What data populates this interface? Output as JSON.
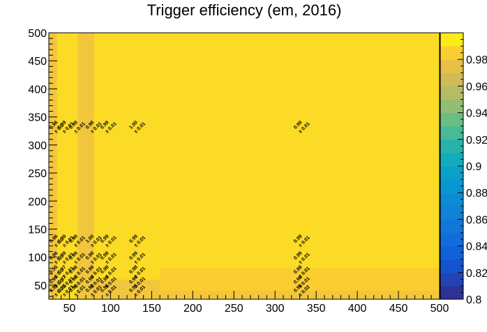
{
  "chart_data": {
    "type": "heatmap",
    "title": "Trigger efficiency (em, 2016)",
    "xlabel": "",
    "ylabel": "",
    "xlim": [
      25,
      500
    ],
    "ylim": [
      25,
      500
    ],
    "x_ticks": [
      50,
      100,
      150,
      200,
      250,
      300,
      350,
      400,
      450,
      500
    ],
    "y_ticks": [
      50,
      100,
      150,
      200,
      250,
      300,
      350,
      400,
      450,
      500
    ],
    "colorbar": {
      "min": 0.8,
      "max": 1.0,
      "ticks": [
        "0.8",
        "0.82",
        "0.84",
        "0.86",
        "0.88",
        "0.9",
        "0.92",
        "0.94",
        "0.96",
        "0.98"
      ]
    },
    "background_value": 0.99,
    "cells": [
      {
        "x": [
          25,
          35
        ],
        "y": [
          25,
          500
        ],
        "value": 0.98
      },
      {
        "x": [
          35,
          60
        ],
        "y": [
          25,
          500
        ],
        "value": 0.99
      },
      {
        "x": [
          60,
          80
        ],
        "y": [
          150,
          500
        ],
        "value": 0.98
      },
      {
        "x": [
          60,
          80
        ],
        "y": [
          25,
          150
        ],
        "value": 0.98
      },
      {
        "x": [
          80,
          500
        ],
        "y": [
          25,
          40
        ],
        "value": 0.98
      },
      {
        "x": [
          80,
          160
        ],
        "y": [
          40,
          60
        ],
        "value": 0.98
      },
      {
        "x": [
          160,
          500
        ],
        "y": [
          40,
          80
        ],
        "value": 0.985
      }
    ],
    "annotations": [
      {
        "x": 28,
        "y": 328,
        "value": "0.96",
        "err": "± 0.0"
      },
      {
        "x": 38,
        "y": 328,
        "value": "0.99",
        "err": "± 0.01"
      },
      {
        "x": 52,
        "y": 328,
        "value": "0.99",
        "err": "± 0.01"
      },
      {
        "x": 72,
        "y": 328,
        "value": "0.98",
        "err": "± 0.01"
      },
      {
        "x": 90,
        "y": 328,
        "value": "0.99",
        "err": "± 0.01"
      },
      {
        "x": 125,
        "y": 328,
        "value": "1.00",
        "err": "± 0.01"
      },
      {
        "x": 325,
        "y": 328,
        "value": "0.99",
        "err": "± 0.01"
      },
      {
        "x": 28,
        "y": 125,
        "value": "0.96",
        "err": "± 0.0"
      },
      {
        "x": 38,
        "y": 125,
        "value": "0.99",
        "err": "± 0.01"
      },
      {
        "x": 52,
        "y": 125,
        "value": "0.99",
        "err": "± 0.01"
      },
      {
        "x": 72,
        "y": 125,
        "value": "1.00",
        "err": "± 0.01"
      },
      {
        "x": 90,
        "y": 125,
        "value": "0.99",
        "err": "± 0.01"
      },
      {
        "x": 125,
        "y": 125,
        "value": "0.99",
        "err": "± 0.01"
      },
      {
        "x": 325,
        "y": 125,
        "value": "0.99",
        "err": "± 0.01"
      },
      {
        "x": 28,
        "y": 95,
        "value": "0.96",
        "err": "± 0.0"
      },
      {
        "x": 38,
        "y": 95,
        "value": "0.99",
        "err": "± 0.01"
      },
      {
        "x": 52,
        "y": 95,
        "value": "0.99",
        "err": "± 0.01"
      },
      {
        "x": 72,
        "y": 95,
        "value": "0.98",
        "err": "± 0.01"
      },
      {
        "x": 90,
        "y": 95,
        "value": "0.98",
        "err": "± 0.01"
      },
      {
        "x": 125,
        "y": 95,
        "value": "0.99",
        "err": "± 0.01"
      },
      {
        "x": 325,
        "y": 95,
        "value": "0.99",
        "err": "± 0.01"
      },
      {
        "x": 28,
        "y": 70,
        "value": "0.95",
        "err": "± 0.0"
      },
      {
        "x": 38,
        "y": 70,
        "value": "0.97",
        "err": "± 0.01"
      },
      {
        "x": 52,
        "y": 70,
        "value": "0.98",
        "err": "± 0.01"
      },
      {
        "x": 72,
        "y": 70,
        "value": "0.98",
        "err": "± 0.01"
      },
      {
        "x": 90,
        "y": 70,
        "value": "0.98",
        "err": "± 0.01"
      },
      {
        "x": 125,
        "y": 70,
        "value": "0.98",
        "err": "± 0.01"
      },
      {
        "x": 325,
        "y": 70,
        "value": "0.98",
        "err": "± 0.01"
      },
      {
        "x": 28,
        "y": 52,
        "value": "0.96",
        "err": "± 0.0"
      },
      {
        "x": 38,
        "y": 52,
        "value": "0.97",
        "err": "± 0.01"
      },
      {
        "x": 52,
        "y": 52,
        "value": "0.98",
        "err": "± 0.01"
      },
      {
        "x": 72,
        "y": 52,
        "value": "0.96",
        "err": "± 0.01"
      },
      {
        "x": 90,
        "y": 52,
        "value": "0.96",
        "err": "± 0.01"
      },
      {
        "x": 125,
        "y": 52,
        "value": "0.96",
        "err": "± 0.01"
      },
      {
        "x": 325,
        "y": 52,
        "value": "0.96",
        "err": "± 0.01"
      },
      {
        "x": 28,
        "y": 37,
        "value": "0.95",
        "err": "± 0.0"
      },
      {
        "x": 38,
        "y": 37,
        "value": "0.95",
        "err": "± 0.01"
      },
      {
        "x": 52,
        "y": 37,
        "value": "0.96",
        "err": "± 0.01"
      },
      {
        "x": 72,
        "y": 37,
        "value": "0.98",
        "err": "± 0.01"
      },
      {
        "x": 90,
        "y": 37,
        "value": "0.96",
        "err": "± 0.01"
      },
      {
        "x": 125,
        "y": 37,
        "value": "0.95",
        "err": "± 0.01"
      },
      {
        "x": 325,
        "y": 37,
        "value": "0.95",
        "err": "± 0.02"
      }
    ]
  }
}
